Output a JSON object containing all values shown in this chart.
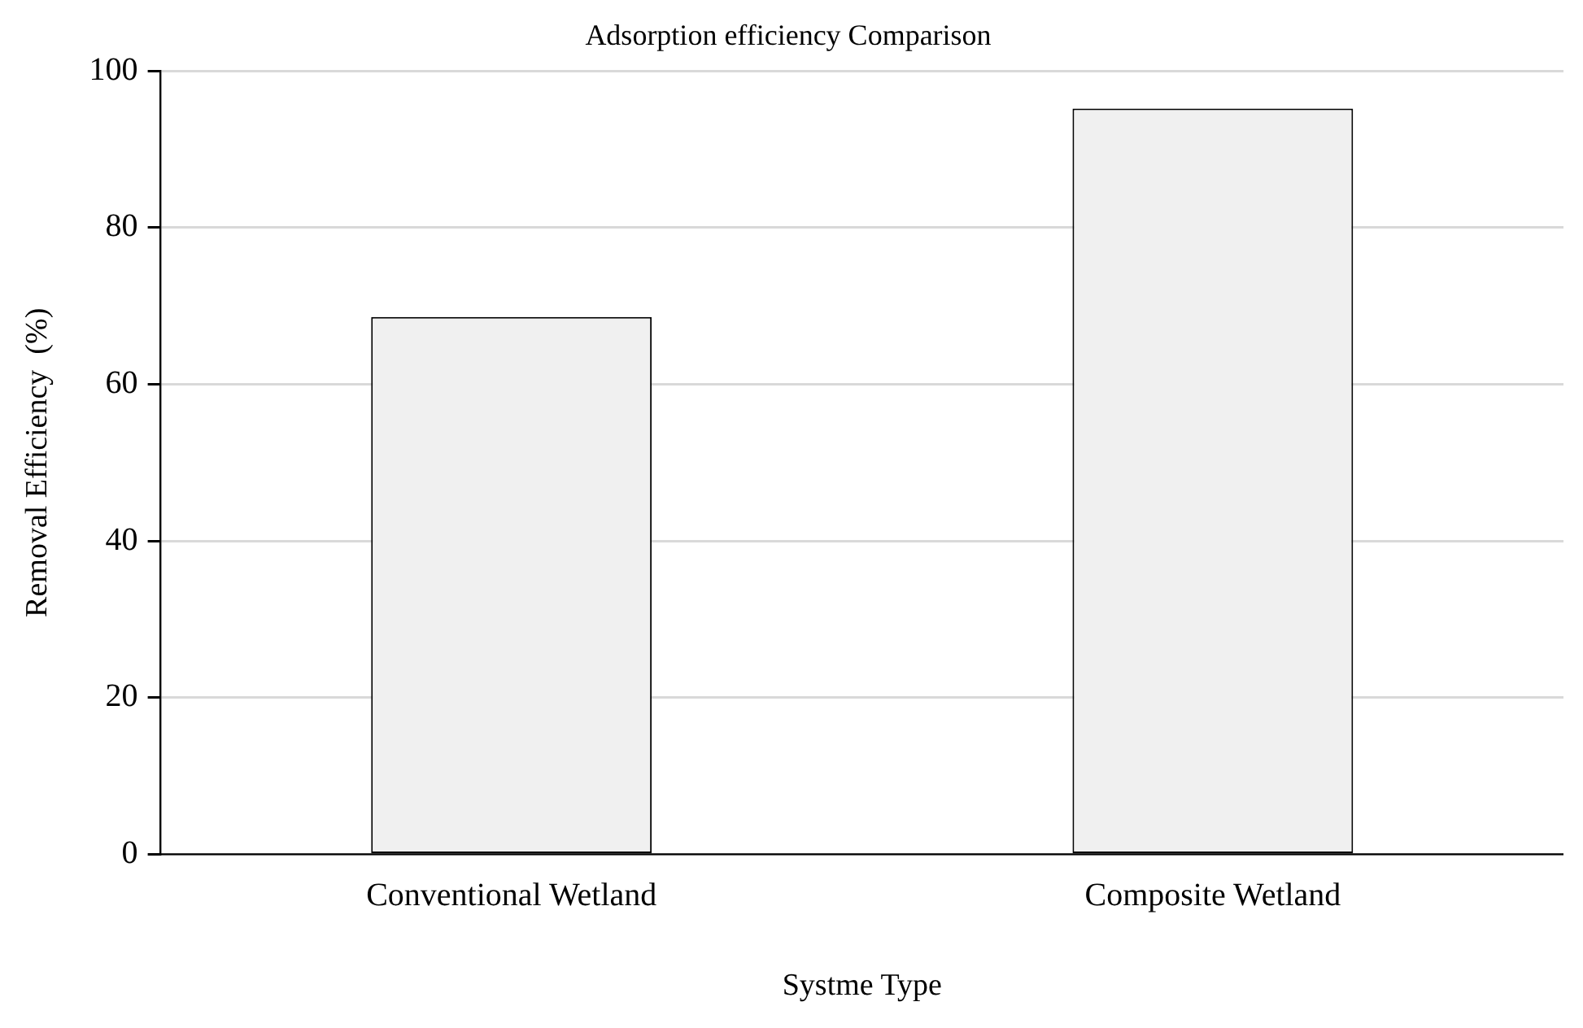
{
  "chart_data": {
    "type": "bar",
    "title": "Adsorption efficiency Comparison",
    "xlabel": "Systme Type",
    "ylabel": "Removal Efficiency  (%)",
    "categories": [
      "Conventional Wetland",
      "Composite Wetland"
    ],
    "values": [
      68.6,
      95.2
    ],
    "color": "#f0f0f0",
    "ylim": [
      0,
      100
    ],
    "yticks": [
      0,
      20,
      40,
      60,
      80,
      100
    ],
    "grid": "y",
    "legend": false
  }
}
